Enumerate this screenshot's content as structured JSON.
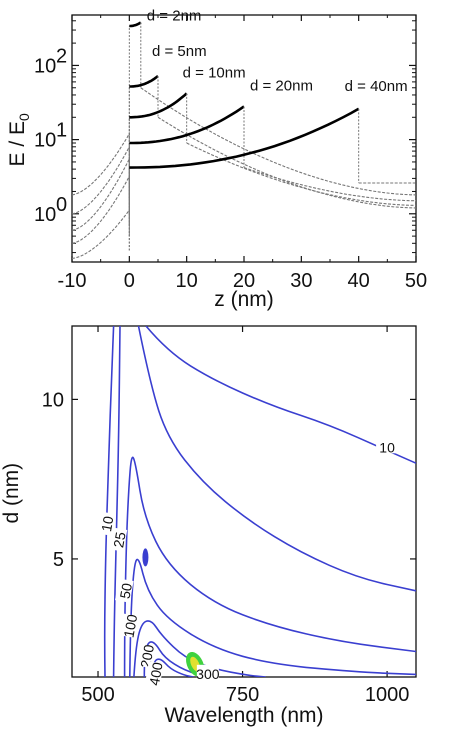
{
  "chart_data": [
    {
      "type": "line",
      "xlabel": "z (nm)",
      "ylabel_main": "E / E",
      "ylabel_sub": "0",
      "xlim": [
        -10,
        50
      ],
      "ylim_log10": [
        -0.65,
        2.68
      ],
      "y_scale": "log",
      "x_ticks": [
        "-10",
        "0",
        "10",
        "20",
        "30",
        "40",
        "50"
      ],
      "x_tick_values": [
        -10,
        0,
        10,
        20,
        30,
        40,
        50
      ],
      "y_ticks": [
        {
          "base": "10",
          "exp": "0",
          "log": 0
        },
        {
          "base": "10",
          "exp": "1",
          "log": 1
        },
        {
          "base": "10",
          "exp": "2",
          "log": 2
        }
      ],
      "series": [
        {
          "name": "d = 2nm",
          "d": 2,
          "left_at_0": 1.12,
          "edge_low": 0.32,
          "inside_start": 340,
          "inside_end": 380,
          "decay_top": 50,
          "right_end": 1.8,
          "left_end": 0.25
        },
        {
          "name": "d = 5nm",
          "d": 5,
          "left_at_0": 3.2,
          "edge_low": 0.5,
          "inside_start": 52,
          "inside_end": 72,
          "decay_top": 20,
          "right_end": 1.2,
          "left_end": 0.4
        },
        {
          "name": "d = 10nm",
          "d": 10,
          "left_at_0": 5.5,
          "edge_low": 0.7,
          "inside_start": 20,
          "inside_end": 42,
          "decay_top": 9,
          "right_end": 1.3,
          "left_end": 0.6
        },
        {
          "name": "d = 20nm",
          "d": 20,
          "left_at_0": 8.0,
          "edge_low": 1.0,
          "inside_start": 9,
          "inside_end": 28,
          "decay_top": 4.2,
          "right_end": 1.5,
          "left_end": 1.0
        },
        {
          "name": "d = 40nm",
          "d": 40,
          "left_at_0": 12.0,
          "edge_low": 1.6,
          "inside_start": 4.2,
          "inside_end": 26,
          "decay_top": 2.6,
          "right_end": 2.6,
          "left_end": 1.8
        }
      ],
      "annotations": [
        "d = 2nm",
        "d = 5nm",
        "d = 10nm",
        "d = 20nm",
        "d = 40nm"
      ]
    },
    {
      "type": "contour",
      "xlabel": "Wavelength (nm)",
      "ylabel": "d (nm)",
      "xlim": [
        455,
        1050
      ],
      "ylim": [
        1.3,
        12.3
      ],
      "x_ticks": [
        "500",
        "750",
        "1000"
      ],
      "x_tick_values": [
        500,
        750,
        1000
      ],
      "y_ticks": [
        "5",
        "10"
      ],
      "y_tick_values": [
        5,
        10
      ],
      "contour_labels": [
        "10",
        "10",
        "25",
        "50",
        "100",
        "200",
        "400",
        "300"
      ],
      "contour_color": "#3a3fd0",
      "hot_colors": [
        "#3fd23f",
        "#e0e030",
        "#ff9a2a"
      ]
    }
  ]
}
